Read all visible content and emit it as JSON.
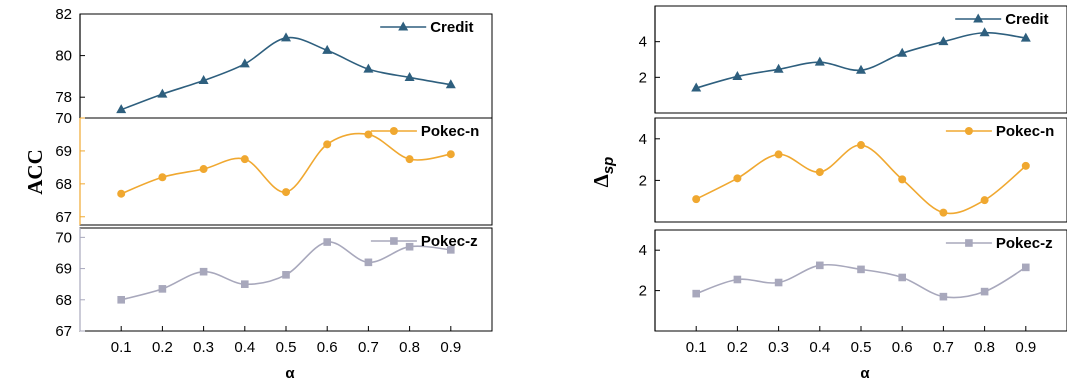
{
  "chart_data": [
    {
      "type": "line",
      "ylabel": "ACC",
      "xlabel": "α",
      "x": [
        0.1,
        0.2,
        0.3,
        0.4,
        0.5,
        0.6,
        0.7,
        0.8,
        0.9
      ],
      "x_tick_labels": [
        "0.1",
        "0.2",
        "0.3",
        "0.4",
        "0.5",
        "0.6",
        "0.7",
        "0.8",
        "0.9"
      ],
      "xlim": [
        0.0,
        1.0
      ],
      "panels": [
        {
          "series": [
            {
              "name": "Credit",
              "values": [
                77.4,
                78.15,
                78.8,
                79.6,
                80.85,
                80.25,
                79.35,
                78.95,
                78.6
              ],
              "color": "#2e5f7e",
              "marker": "triangle"
            }
          ],
          "ylim": [
            77.0,
            82.0
          ],
          "yticks": [
            78,
            80,
            82
          ],
          "ytick_labels": [
            "78",
            "80",
            "82"
          ],
          "legend_position": "top-right"
        },
        {
          "series": [
            {
              "name": "Pokec-n",
              "values": [
                67.7,
                68.2,
                68.45,
                68.75,
                67.75,
                69.2,
                69.5,
                68.75,
                68.9
              ],
              "color": "#f0a830",
              "marker": "circle"
            }
          ],
          "ylim": [
            66.75,
            70.0
          ],
          "yticks": [
            67,
            68,
            69,
            70
          ],
          "ytick_labels": [
            "67",
            "68",
            "69",
            "70"
          ],
          "legend_position": "top-right"
        },
        {
          "series": [
            {
              "name": "Pokec-z",
              "values": [
                68.0,
                68.35,
                68.9,
                68.5,
                68.8,
                69.85,
                69.2,
                69.7,
                69.6
              ],
              "color": "#a8a8bc",
              "marker": "square"
            }
          ],
          "ylim": [
            67.0,
            70.3
          ],
          "yticks": [
            67,
            68,
            69,
            70
          ],
          "ytick_labels": [
            "67",
            "68",
            "69",
            "70"
          ],
          "legend_position": "top-right"
        }
      ]
    },
    {
      "type": "line",
      "ylabel": "Δsp",
      "xlabel": "α",
      "x": [
        0.1,
        0.2,
        0.3,
        0.4,
        0.5,
        0.6,
        0.7,
        0.8,
        0.9
      ],
      "x_tick_labels": [
        "0.1",
        "0.2",
        "0.3",
        "0.4",
        "0.5",
        "0.6",
        "0.7",
        "0.8",
        "0.9"
      ],
      "xlim": [
        0.0,
        1.0
      ],
      "panels": [
        {
          "series": [
            {
              "name": "Credit",
              "values": [
                1.4,
                2.05,
                2.45,
                2.85,
                2.4,
                3.35,
                4.0,
                4.5,
                4.2
              ],
              "color": "#2e5f7e",
              "marker": "triangle"
            }
          ],
          "ylim": [
            0.0,
            6.0
          ],
          "yticks": [
            2,
            4
          ],
          "ytick_labels": [
            "2",
            "4"
          ],
          "legend_position": "top-right"
        },
        {
          "series": [
            {
              "name": "Pokec-n",
              "values": [
                1.1,
                2.1,
                3.25,
                2.4,
                3.7,
                2.05,
                0.45,
                1.05,
                2.7
              ],
              "color": "#f0a830",
              "marker": "circle"
            }
          ],
          "ylim": [
            0.0,
            5.0
          ],
          "yticks": [
            2,
            4
          ],
          "ytick_labels": [
            "2",
            "4"
          ],
          "legend_position": "top-right"
        },
        {
          "series": [
            {
              "name": "Pokec-z",
              "values": [
                1.85,
                2.55,
                2.4,
                3.25,
                3.05,
                2.65,
                1.7,
                1.95,
                3.15
              ],
              "color": "#a8a8bc",
              "marker": "square"
            }
          ],
          "ylim": [
            0.0,
            5.0
          ],
          "yticks": [
            2,
            4
          ],
          "ytick_labels": [
            "2",
            "4"
          ],
          "legend_position": "top-right"
        }
      ]
    }
  ]
}
